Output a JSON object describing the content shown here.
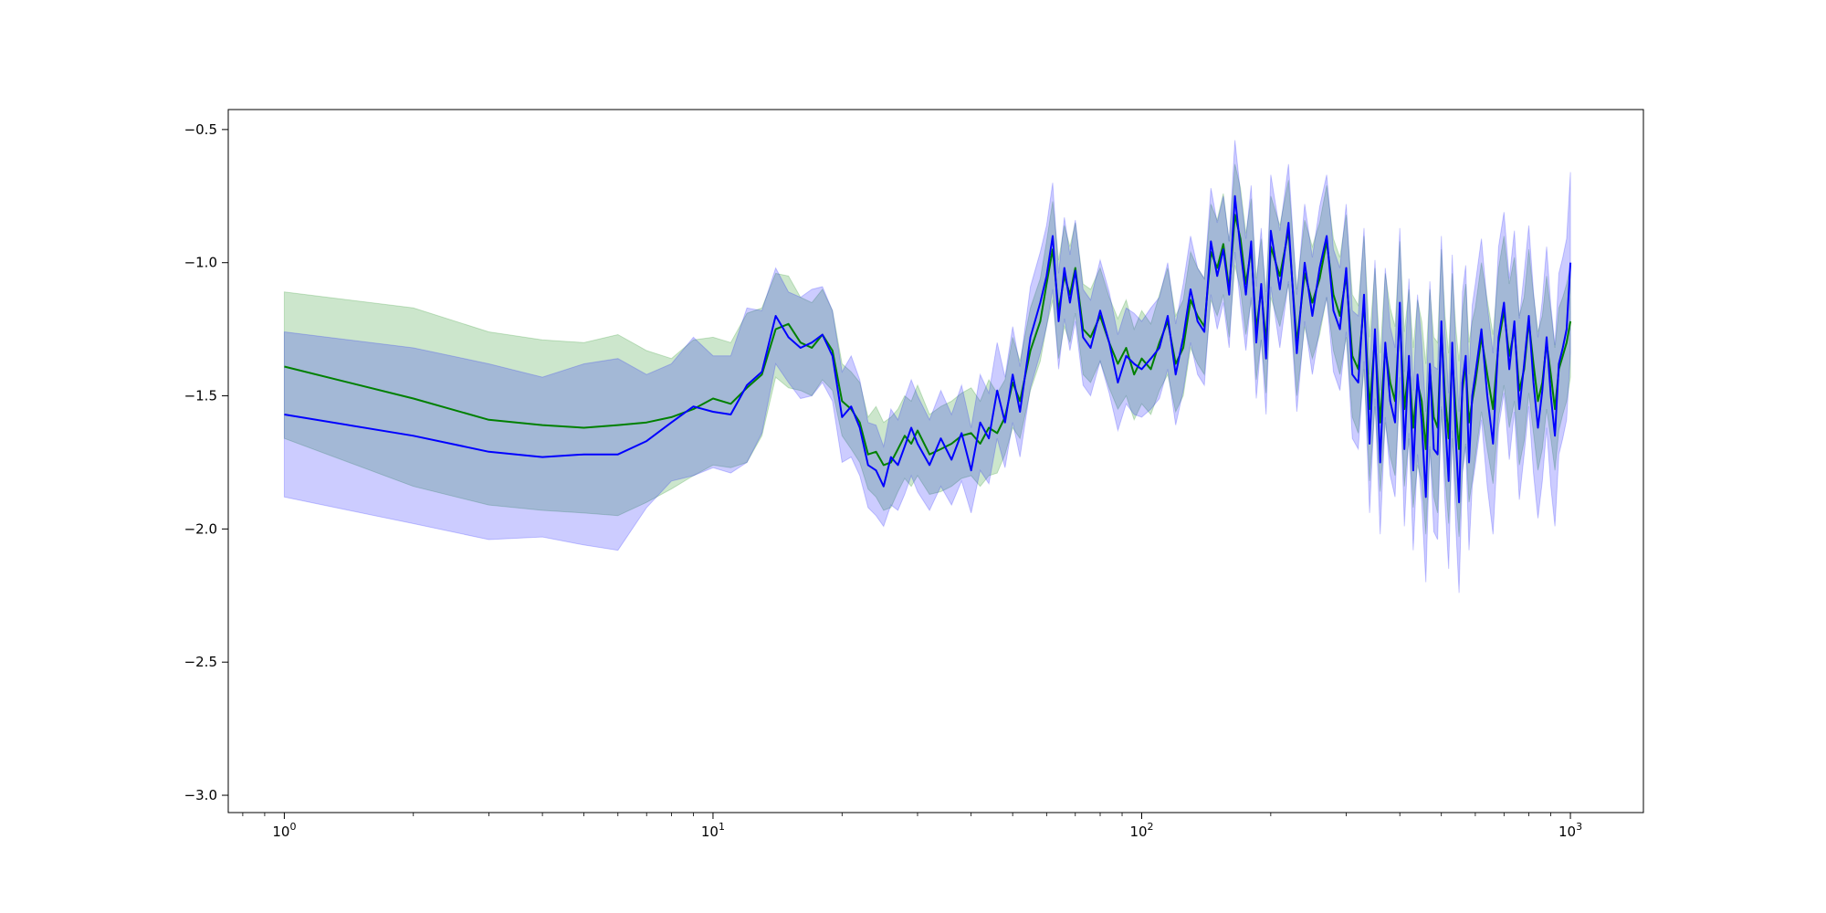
{
  "chart_data": {
    "type": "line",
    "title": "",
    "xlabel": "",
    "ylabel": "",
    "xscale": "log",
    "xlim": [
      0.74,
      1480
    ],
    "ylim": [
      -3.065,
      -0.425
    ],
    "grid": false,
    "legend": "none",
    "x_ticks": [
      {
        "value": 1,
        "base": "10",
        "exp": "0"
      },
      {
        "value": 10,
        "base": "10",
        "exp": "1"
      },
      {
        "value": 100,
        "base": "10",
        "exp": "2"
      },
      {
        "value": 1000,
        "base": "10",
        "exp": "3"
      }
    ],
    "y_ticks": [
      {
        "value": -0.5,
        "label": "−0.5"
      },
      {
        "value": -1.0,
        "label": "−1.0"
      },
      {
        "value": -1.5,
        "label": "−1.5"
      },
      {
        "value": -2.0,
        "label": "−2.0"
      },
      {
        "value": -2.5,
        "label": "−2.5"
      },
      {
        "value": -3.0,
        "label": "−3.0"
      }
    ],
    "series": [
      {
        "color": "#008000",
        "band_color": "#008000",
        "band_opacity": 0.2,
        "x": [
          1,
          2,
          3,
          4,
          5,
          6,
          7,
          8,
          9,
          10,
          11,
          12,
          13,
          14,
          15,
          16,
          17,
          18,
          19,
          20,
          21,
          22,
          23,
          24,
          25,
          26,
          27,
          28,
          29,
          30,
          32,
          34,
          36,
          38,
          40,
          42,
          44,
          46,
          48,
          50,
          52,
          55,
          58,
          60,
          62,
          64,
          66,
          68,
          70,
          73,
          76,
          80,
          84,
          88,
          92,
          96,
          100,
          105,
          110,
          115,
          120,
          125,
          130,
          135,
          140,
          145,
          150,
          155,
          160,
          165,
          170,
          175,
          180,
          185,
          190,
          195,
          200,
          210,
          220,
          230,
          240,
          250,
          260,
          270,
          280,
          290,
          300,
          310,
          320,
          330,
          340,
          350,
          360,
          370,
          380,
          390,
          400,
          410,
          420,
          430,
          440,
          450,
          460,
          470,
          480,
          490,
          500,
          510,
          520,
          530,
          540,
          550,
          560,
          570,
          580,
          590,
          600,
          620,
          640,
          660,
          680,
          700,
          720,
          740,
          760,
          780,
          800,
          820,
          840,
          860,
          880,
          900,
          920,
          940,
          960,
          980,
          1000
        ],
        "y": [
          -1.39,
          -1.51,
          -1.59,
          -1.61,
          -1.62,
          -1.61,
          -1.6,
          -1.58,
          -1.55,
          -1.51,
          -1.53,
          -1.47,
          -1.42,
          -1.25,
          -1.23,
          -1.3,
          -1.32,
          -1.27,
          -1.33,
          -1.52,
          -1.55,
          -1.6,
          -1.72,
          -1.71,
          -1.76,
          -1.75,
          -1.7,
          -1.65,
          -1.68,
          -1.63,
          -1.72,
          -1.7,
          -1.68,
          -1.65,
          -1.64,
          -1.68,
          -1.62,
          -1.64,
          -1.58,
          -1.45,
          -1.52,
          -1.33,
          -1.22,
          -1.08,
          -0.95,
          -1.18,
          -1.05,
          -1.12,
          -1.02,
          -1.25,
          -1.28,
          -1.2,
          -1.3,
          -1.38,
          -1.32,
          -1.42,
          -1.36,
          -1.4,
          -1.3,
          -1.22,
          -1.38,
          -1.32,
          -1.14,
          -1.2,
          -1.24,
          -0.96,
          -1.02,
          -0.93,
          -1.1,
          -0.82,
          -0.91,
          -1.08,
          -0.95,
          -1.25,
          -1.1,
          -1.3,
          -0.94,
          -1.05,
          -0.88,
          -1.3,
          -1.04,
          -1.15,
          -1.06,
          -0.92,
          -1.12,
          -1.2,
          -1.05,
          -1.35,
          -1.4,
          -1.15,
          -1.55,
          -1.28,
          -1.6,
          -1.32,
          -1.45,
          -1.52,
          -1.2,
          -1.55,
          -1.38,
          -1.62,
          -1.45,
          -1.52,
          -1.7,
          -1.4,
          -1.58,
          -1.62,
          -1.25,
          -1.5,
          -1.66,
          -1.35,
          -1.55,
          -1.7,
          -1.48,
          -1.38,
          -1.6,
          -1.52,
          -1.45,
          -1.28,
          -1.42,
          -1.55,
          -1.3,
          -1.18,
          -1.35,
          -1.25,
          -1.48,
          -1.4,
          -1.22,
          -1.38,
          -1.52,
          -1.45,
          -1.3,
          -1.42,
          -1.55,
          -1.4,
          -1.35,
          -1.3,
          -1.22
        ],
        "lower": [
          -1.66,
          -1.84,
          -1.91,
          -1.93,
          -1.94,
          -1.95,
          -1.9,
          -1.85,
          -1.8,
          -1.76,
          -1.77,
          -1.75,
          -1.65,
          -1.43,
          -1.47,
          -1.48,
          -1.5,
          -1.44,
          -1.48,
          -1.65,
          -1.7,
          -1.75,
          -1.85,
          -1.88,
          -1.93,
          -1.92,
          -1.86,
          -1.81,
          -1.84,
          -1.8,
          -1.87,
          -1.86,
          -1.84,
          -1.81,
          -1.8,
          -1.84,
          -1.8,
          -1.79,
          -1.72,
          -1.62,
          -1.66,
          -1.48,
          -1.37,
          -1.24,
          -1.14,
          -1.36,
          -1.24,
          -1.3,
          -1.19,
          -1.42,
          -1.45,
          -1.37,
          -1.47,
          -1.55,
          -1.5,
          -1.59,
          -1.53,
          -1.57,
          -1.48,
          -1.42,
          -1.56,
          -1.5,
          -1.32,
          -1.38,
          -1.42,
          -1.14,
          -1.2,
          -1.12,
          -1.28,
          -1.01,
          -1.1,
          -1.27,
          -1.14,
          -1.44,
          -1.29,
          -1.49,
          -1.13,
          -1.24,
          -1.08,
          -1.5,
          -1.24,
          -1.36,
          -1.27,
          -1.13,
          -1.33,
          -1.42,
          -1.28,
          -1.58,
          -1.64,
          -1.4,
          -1.82,
          -1.54,
          -1.86,
          -1.6,
          -1.73,
          -1.8,
          -1.48,
          -1.84,
          -1.66,
          -1.92,
          -1.76,
          -1.82,
          -2.02,
          -1.7,
          -1.88,
          -1.94,
          -1.55,
          -1.8,
          -1.98,
          -1.66,
          -1.86,
          -2.03,
          -1.78,
          -1.68,
          -1.9,
          -1.82,
          -1.73,
          -1.56,
          -1.7,
          -1.83,
          -1.58,
          -1.46,
          -1.62,
          -1.52,
          -1.76,
          -1.67,
          -1.49,
          -1.64,
          -1.78,
          -1.7,
          -1.55,
          -1.66,
          -1.78,
          -1.63,
          -1.57,
          -1.52,
          -1.43
        ],
        "upper": [
          -1.11,
          -1.17,
          -1.26,
          -1.29,
          -1.3,
          -1.27,
          -1.33,
          -1.36,
          -1.29,
          -1.28,
          -1.3,
          -1.19,
          -1.17,
          -1.04,
          -1.05,
          -1.13,
          -1.15,
          -1.1,
          -1.18,
          -1.38,
          -1.41,
          -1.45,
          -1.58,
          -1.54,
          -1.6,
          -1.58,
          -1.55,
          -1.5,
          -1.52,
          -1.46,
          -1.57,
          -1.54,
          -1.52,
          -1.49,
          -1.47,
          -1.52,
          -1.44,
          -1.49,
          -1.44,
          -1.28,
          -1.37,
          -1.17,
          -1.06,
          -0.92,
          -0.77,
          -0.99,
          -0.86,
          -0.94,
          -0.85,
          -1.08,
          -1.1,
          -1.02,
          -1.13,
          -1.21,
          -1.14,
          -1.25,
          -1.18,
          -1.23,
          -1.12,
          -1.02,
          -1.2,
          -1.14,
          -0.96,
          -1.02,
          -1.06,
          -0.78,
          -0.84,
          -0.74,
          -0.92,
          -0.63,
          -0.72,
          -0.89,
          -0.76,
          -1.06,
          -0.91,
          -1.11,
          -0.75,
          -0.86,
          -0.69,
          -1.1,
          -0.84,
          -0.94,
          -0.85,
          -0.71,
          -0.91,
          -0.98,
          -0.82,
          -1.12,
          -1.16,
          -0.9,
          -1.28,
          -1.02,
          -1.34,
          -1.04,
          -1.17,
          -1.24,
          -0.92,
          -1.26,
          -1.1,
          -1.32,
          -1.14,
          -1.22,
          -1.38,
          -1.1,
          -1.28,
          -1.3,
          -0.95,
          -1.2,
          -1.34,
          -1.04,
          -1.24,
          -1.37,
          -1.18,
          -1.08,
          -1.3,
          -1.22,
          -1.17,
          -1.0,
          -1.14,
          -1.27,
          -1.02,
          -0.9,
          -1.08,
          -0.98,
          -1.2,
          -1.13,
          -0.95,
          -1.12,
          -1.26,
          -1.2,
          -1.05,
          -1.18,
          -1.32,
          -1.17,
          -1.13,
          -1.08,
          -1.01
        ]
      },
      {
        "color": "#0000ff",
        "band_color": "#0000ff",
        "band_opacity": 0.2,
        "x": [
          1,
          2,
          3,
          4,
          5,
          6,
          7,
          8,
          9,
          10,
          11,
          12,
          13,
          14,
          15,
          16,
          17,
          18,
          19,
          20,
          21,
          22,
          23,
          24,
          25,
          26,
          27,
          28,
          29,
          30,
          32,
          34,
          36,
          38,
          40,
          42,
          44,
          46,
          48,
          50,
          52,
          55,
          58,
          60,
          62,
          64,
          66,
          68,
          70,
          73,
          76,
          80,
          84,
          88,
          92,
          96,
          100,
          105,
          110,
          115,
          120,
          125,
          130,
          135,
          140,
          145,
          150,
          155,
          160,
          165,
          170,
          175,
          180,
          185,
          190,
          195,
          200,
          210,
          220,
          230,
          240,
          250,
          260,
          270,
          280,
          290,
          300,
          310,
          320,
          330,
          340,
          350,
          360,
          370,
          380,
          390,
          400,
          410,
          420,
          430,
          440,
          450,
          460,
          470,
          480,
          490,
          500,
          510,
          520,
          530,
          540,
          550,
          560,
          570,
          580,
          590,
          600,
          620,
          640,
          660,
          680,
          700,
          720,
          740,
          760,
          780,
          800,
          820,
          840,
          860,
          880,
          900,
          920,
          940,
          960,
          980,
          1000
        ],
        "y": [
          -1.57,
          -1.65,
          -1.71,
          -1.73,
          -1.72,
          -1.72,
          -1.67,
          -1.6,
          -1.54,
          -1.56,
          -1.57,
          -1.46,
          -1.41,
          -1.2,
          -1.28,
          -1.32,
          -1.3,
          -1.27,
          -1.35,
          -1.58,
          -1.54,
          -1.62,
          -1.76,
          -1.78,
          -1.84,
          -1.73,
          -1.76,
          -1.69,
          -1.62,
          -1.68,
          -1.76,
          -1.66,
          -1.74,
          -1.64,
          -1.78,
          -1.6,
          -1.66,
          -1.48,
          -1.6,
          -1.42,
          -1.56,
          -1.28,
          -1.15,
          -1.05,
          -0.9,
          -1.22,
          -1.02,
          -1.15,
          -1.03,
          -1.28,
          -1.32,
          -1.18,
          -1.3,
          -1.45,
          -1.35,
          -1.38,
          -1.4,
          -1.36,
          -1.32,
          -1.2,
          -1.42,
          -1.28,
          -1.1,
          -1.22,
          -1.26,
          -0.92,
          -1.05,
          -0.95,
          -1.12,
          -0.75,
          -0.95,
          -1.12,
          -0.92,
          -1.3,
          -1.08,
          -1.36,
          -0.88,
          -1.1,
          -0.85,
          -1.34,
          -1.0,
          -1.2,
          -1.02,
          -0.9,
          -1.18,
          -1.25,
          -1.02,
          -1.42,
          -1.45,
          -1.12,
          -1.68,
          -1.25,
          -1.75,
          -1.3,
          -1.52,
          -1.6,
          -1.15,
          -1.7,
          -1.35,
          -1.78,
          -1.42,
          -1.6,
          -1.88,
          -1.38,
          -1.7,
          -1.72,
          -1.22,
          -1.58,
          -1.82,
          -1.3,
          -1.65,
          -1.9,
          -1.45,
          -1.35,
          -1.75,
          -1.5,
          -1.42,
          -1.25,
          -1.5,
          -1.68,
          -1.28,
          -1.15,
          -1.4,
          -1.22,
          -1.55,
          -1.38,
          -1.2,
          -1.45,
          -1.62,
          -1.48,
          -1.28,
          -1.5,
          -1.65,
          -1.38,
          -1.32,
          -1.25,
          -1.0
        ],
        "lower": [
          -1.88,
          -1.98,
          -2.04,
          -2.03,
          -2.06,
          -2.08,
          -1.92,
          -1.82,
          -1.8,
          -1.77,
          -1.79,
          -1.75,
          -1.64,
          -1.38,
          -1.45,
          -1.51,
          -1.5,
          -1.45,
          -1.52,
          -1.75,
          -1.73,
          -1.8,
          -1.92,
          -1.95,
          -1.99,
          -1.91,
          -1.93,
          -1.87,
          -1.8,
          -1.86,
          -1.93,
          -1.84,
          -1.91,
          -1.82,
          -1.94,
          -1.78,
          -1.83,
          -1.66,
          -1.77,
          -1.6,
          -1.73,
          -1.47,
          -1.34,
          -1.24,
          -1.1,
          -1.4,
          -1.21,
          -1.33,
          -1.22,
          -1.46,
          -1.5,
          -1.37,
          -1.49,
          -1.63,
          -1.53,
          -1.57,
          -1.58,
          -1.55,
          -1.51,
          -1.4,
          -1.61,
          -1.48,
          -1.3,
          -1.42,
          -1.46,
          -1.12,
          -1.25,
          -1.15,
          -1.32,
          -0.96,
          -1.16,
          -1.33,
          -1.13,
          -1.51,
          -1.29,
          -1.57,
          -1.09,
          -1.32,
          -1.07,
          -1.56,
          -1.22,
          -1.42,
          -1.25,
          -1.13,
          -1.41,
          -1.48,
          -1.26,
          -1.66,
          -1.7,
          -1.37,
          -1.94,
          -1.51,
          -2.02,
          -1.58,
          -1.8,
          -1.88,
          -1.43,
          -1.99,
          -1.64,
          -2.08,
          -1.72,
          -1.9,
          -2.2,
          -1.69,
          -2.01,
          -2.04,
          -1.54,
          -1.9,
          -2.15,
          -1.63,
          -1.98,
          -2.24,
          -1.79,
          -1.69,
          -2.08,
          -1.84,
          -1.76,
          -1.59,
          -1.84,
          -2.02,
          -1.62,
          -1.49,
          -1.74,
          -1.56,
          -1.89,
          -1.72,
          -1.54,
          -1.79,
          -1.96,
          -1.82,
          -1.62,
          -1.84,
          -1.99,
          -1.72,
          -1.66,
          -1.59,
          -1.34
        ],
        "upper": [
          -1.26,
          -1.32,
          -1.38,
          -1.43,
          -1.38,
          -1.36,
          -1.42,
          -1.38,
          -1.28,
          -1.35,
          -1.35,
          -1.17,
          -1.18,
          -1.02,
          -1.11,
          -1.13,
          -1.1,
          -1.09,
          -1.18,
          -1.41,
          -1.35,
          -1.44,
          -1.6,
          -1.61,
          -1.69,
          -1.55,
          -1.59,
          -1.51,
          -1.44,
          -1.5,
          -1.59,
          -1.48,
          -1.57,
          -1.46,
          -1.62,
          -1.42,
          -1.49,
          -1.3,
          -1.43,
          -1.24,
          -1.39,
          -1.09,
          -0.96,
          -0.86,
          -0.7,
          -1.04,
          -0.83,
          -0.97,
          -0.84,
          -1.1,
          -1.14,
          -0.99,
          -1.11,
          -1.27,
          -1.17,
          -1.19,
          -1.22,
          -1.17,
          -1.13,
          -1.0,
          -1.23,
          -1.08,
          -0.9,
          -1.02,
          -1.06,
          -0.72,
          -0.85,
          -0.75,
          -0.92,
          -0.54,
          -0.74,
          -0.91,
          -0.71,
          -1.09,
          -0.87,
          -1.15,
          -0.67,
          -0.88,
          -0.63,
          -1.12,
          -0.78,
          -0.98,
          -0.79,
          -0.67,
          -0.95,
          -1.02,
          -0.78,
          -1.18,
          -1.2,
          -0.87,
          -1.42,
          -0.99,
          -1.48,
          -1.02,
          -1.24,
          -1.32,
          -0.87,
          -1.41,
          -1.06,
          -1.48,
          -1.12,
          -1.3,
          -1.56,
          -1.07,
          -1.39,
          -1.4,
          -0.9,
          -1.26,
          -1.49,
          -0.97,
          -1.32,
          -1.56,
          -1.11,
          -1.01,
          -1.42,
          -1.16,
          -1.08,
          -0.91,
          -1.16,
          -1.34,
          -0.94,
          -0.81,
          -1.06,
          -0.88,
          -1.21,
          -1.04,
          -0.86,
          -1.11,
          -1.28,
          -1.14,
          -0.94,
          -1.16,
          -1.31,
          -1.04,
          -0.98,
          -0.91,
          -0.66
        ]
      }
    ]
  }
}
